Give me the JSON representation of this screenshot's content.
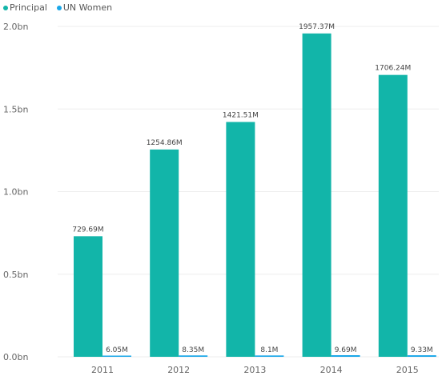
{
  "colors": {
    "principal": "#12B5A9",
    "un_women": "#1AA7E8",
    "grid": "#eeeeee",
    "axis_text": "#666666"
  },
  "legend": [
    {
      "label": "Principal",
      "color": "#12B5A9"
    },
    {
      "label": "UN Women",
      "color": "#1AA7E8"
    }
  ],
  "chart_data": {
    "type": "bar",
    "categories": [
      "2011",
      "2012",
      "2013",
      "2014",
      "2015"
    ],
    "series": [
      {
        "name": "Principal",
        "values": [
          729.69,
          1254.86,
          1421.51,
          1957.37,
          1706.24
        ],
        "labels": [
          "729.69M",
          "1254.86M",
          "1421.51M",
          "1957.37M",
          "1706.24M"
        ]
      },
      {
        "name": "UN Women",
        "values": [
          6.05,
          8.35,
          8.1,
          9.69,
          9.33
        ],
        "labels": [
          "6.05M",
          "8.35M",
          "8.1M",
          "9.69M",
          "9.33M"
        ]
      }
    ],
    "y_unit": "M",
    "ylim": [
      0,
      2000
    ],
    "y_ticks": [
      {
        "value": 0,
        "label": "0.0bn"
      },
      {
        "value": 500,
        "label": "0.5bn"
      },
      {
        "value": 1000,
        "label": "1.0bn"
      },
      {
        "value": 1500,
        "label": "1.5bn"
      },
      {
        "value": 2000,
        "label": "2.0bn"
      }
    ],
    "grid": true,
    "legend_position": "top-left",
    "data_labels": true
  }
}
